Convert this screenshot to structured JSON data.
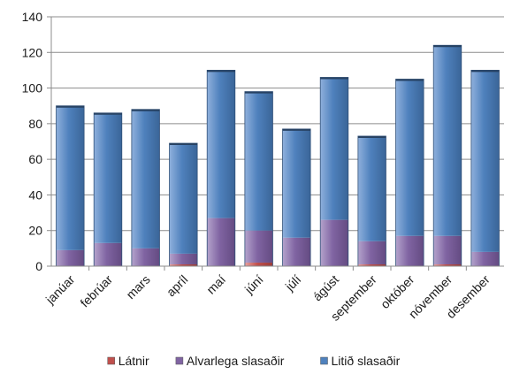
{
  "chart_data": {
    "type": "bar",
    "stacked": true,
    "categories": [
      "janúar",
      "febrúar",
      "mars",
      "apríl",
      "maí",
      "júní",
      "júlí",
      "ágúst",
      "september",
      "október",
      "nóvember",
      "desember"
    ],
    "series": [
      {
        "name": "Látnir",
        "color": "#c0504d",
        "values": [
          0,
          0,
          0,
          1,
          0,
          2,
          0,
          0,
          1,
          0,
          1,
          0
        ]
      },
      {
        "name": "Alvarlega slasaðir",
        "color": "#8064a2",
        "values": [
          9,
          13,
          10,
          6,
          27,
          18,
          16,
          26,
          13,
          17,
          16,
          8
        ]
      },
      {
        "name": "Litið slasaðir",
        "color": "#4f81bd",
        "values": [
          81,
          73,
          78,
          62,
          83,
          78,
          61,
          80,
          59,
          88,
          107,
          102
        ]
      }
    ],
    "ylim": [
      0,
      140
    ],
    "yticks": [
      "0",
      "20",
      "40",
      "60",
      "80",
      "100",
      "120",
      "140"
    ],
    "grid": true,
    "legend_position": "bottom",
    "title": "",
    "xlabel": "",
    "ylabel": ""
  }
}
